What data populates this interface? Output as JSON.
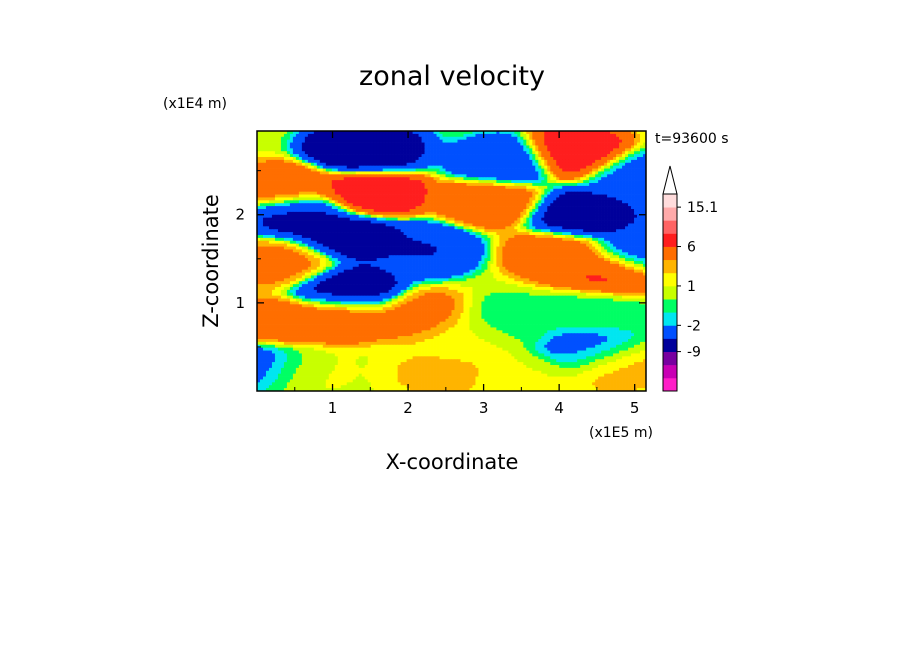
{
  "chart_data": {
    "type": "heatmap",
    "title": "zonal velocity",
    "xlabel": "X-coordinate",
    "ylabel": "Z-coordinate",
    "x_unit": "(x1E5 m)",
    "y_unit": "(x1E4 m)",
    "time_label": "t=93600 s",
    "xlim": [
      0,
      5.15
    ],
    "ylim": [
      0,
      2.95
    ],
    "x_ticks": [
      1,
      2,
      3,
      4,
      5
    ],
    "y_ticks": [
      1,
      2
    ],
    "colorbar": {
      "levels": [
        -16,
        -12,
        -9,
        -5,
        -2,
        -1,
        0,
        1,
        2,
        3,
        6,
        9,
        12,
        15.1
      ],
      "tick_labels": [
        "15.1",
        "6",
        "1",
        "-2",
        "-9"
      ],
      "tick_values": [
        15.1,
        6,
        1,
        -2,
        -9
      ],
      "colors": [
        "#ff1ec8",
        "#c800b4",
        "#7800a0",
        "#00009b",
        "#0050ff",
        "#00e6f0",
        "#00ff64",
        "#c8ff00",
        "#ffff00",
        "#ffb400",
        "#ff6e00",
        "#ff1e1e",
        "#ff6464",
        "#ffaaaa",
        "#ffdcdc"
      ],
      "extend": "max"
    },
    "features": [
      {
        "x": 1.4,
        "z": 2.75,
        "value": -10
      },
      {
        "x": 1.55,
        "z": 2.75,
        "value": -6
      },
      {
        "x": 3.3,
        "z": 2.6,
        "value": -6
      },
      {
        "x": 4.2,
        "z": 2.7,
        "value": 8
      },
      {
        "x": 1.5,
        "z": 2.25,
        "value": 8
      },
      {
        "x": 0.4,
        "z": 2.3,
        "value": 4
      },
      {
        "x": 0.6,
        "z": 2.0,
        "value": -7
      },
      {
        "x": 1.2,
        "z": 1.75,
        "value": -8
      },
      {
        "x": 2.2,
        "z": 1.6,
        "value": -6
      },
      {
        "x": 3.1,
        "z": 2.15,
        "value": 4
      },
      {
        "x": 4.3,
        "z": 2.0,
        "value": -8
      },
      {
        "x": 4.0,
        "z": 1.55,
        "value": 4
      },
      {
        "x": 4.7,
        "z": 1.35,
        "value": 6
      },
      {
        "x": 5.05,
        "z": 1.55,
        "value": -5
      },
      {
        "x": 5.0,
        "z": 2.45,
        "value": -4
      },
      {
        "x": 0.4,
        "z": 1.45,
        "value": 3
      },
      {
        "x": 1.2,
        "z": 1.15,
        "value": -8
      },
      {
        "x": 1.1,
        "z": 0.85,
        "value": 4
      },
      {
        "x": 0.3,
        "z": 0.75,
        "value": 4
      },
      {
        "x": 2.2,
        "z": 0.85,
        "value": 3
      },
      {
        "x": 2.8,
        "z": 0.6,
        "value": 0.5
      },
      {
        "x": 3.3,
        "z": 0.8,
        "value": -1.5
      },
      {
        "x": 4.5,
        "z": 0.9,
        "value": -1.5
      },
      {
        "x": 3.6,
        "z": 0.15,
        "value": 0.3
      },
      {
        "x": 0.5,
        "z": 0.25,
        "value": 0.4
      },
      {
        "x": 4.7,
        "z": 0.3,
        "value": 2
      },
      {
        "x": 2.5,
        "z": 0.2,
        "value": 1.5
      },
      {
        "x": 0.05,
        "z": 0.3,
        "value": -5
      },
      {
        "x": 4.4,
        "z": 0.45,
        "value": -4
      }
    ]
  }
}
